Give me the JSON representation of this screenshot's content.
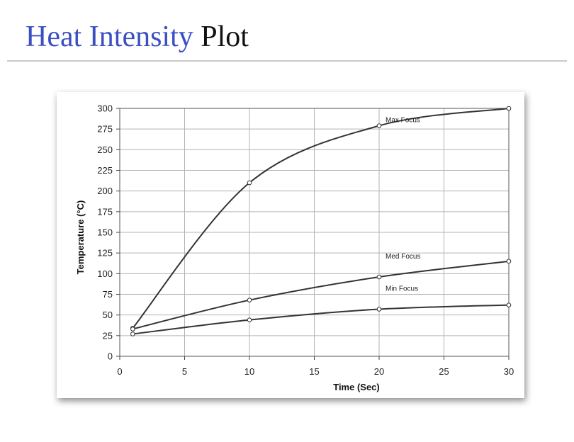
{
  "slide": {
    "title_accent": "Heat Intensity",
    "title_rest": "Plot"
  },
  "colors": {
    "title_accent": "#3a4fc4",
    "series_line": "#333333",
    "grid": "#b3b3b3"
  },
  "chart_data": {
    "type": "line",
    "title": "",
    "xlabel": "Time  (Sec)",
    "ylabel": "Temperature (°C)",
    "xlim": [
      0,
      30
    ],
    "ylim": [
      0,
      300
    ],
    "x_ticks": [
      0,
      5,
      10,
      15,
      20,
      25,
      30
    ],
    "y_ticks": [
      0,
      25,
      50,
      75,
      100,
      125,
      150,
      175,
      200,
      225,
      250,
      275,
      300
    ],
    "grid": true,
    "series": [
      {
        "name": "Max Focus",
        "points": [
          [
            1,
            34
          ],
          [
            10,
            210
          ],
          [
            20,
            279
          ],
          [
            30,
            300
          ]
        ]
      },
      {
        "name": "Med Focus",
        "points": [
          [
            1,
            33
          ],
          [
            10,
            68
          ],
          [
            20,
            96
          ],
          [
            30,
            115
          ]
        ]
      },
      {
        "name": "Min Focus",
        "points": [
          [
            1,
            27
          ],
          [
            10,
            44
          ],
          [
            20,
            57
          ],
          [
            30,
            62
          ]
        ]
      }
    ]
  }
}
